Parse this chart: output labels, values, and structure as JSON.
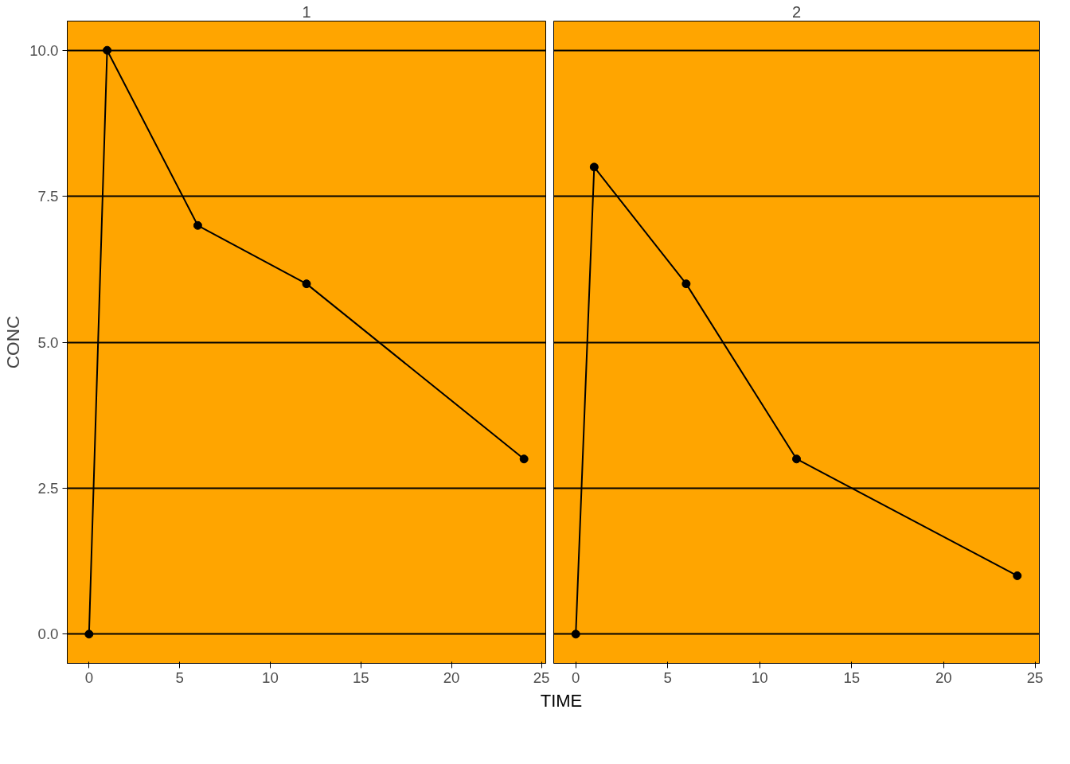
{
  "chart_data": [
    {
      "type": "line",
      "title": "1",
      "xlabel": "TIME",
      "ylabel": "CONC",
      "x": [
        0,
        1,
        6,
        12,
        24
      ],
      "series": [
        {
          "color": "#000000",
          "values": [
            0,
            10,
            7,
            6,
            3
          ]
        }
      ],
      "xlim": [
        -1.2,
        25.2
      ],
      "xticks": [
        0,
        5,
        10,
        15,
        20,
        25
      ],
      "ylim": [
        -0.5,
        10.5
      ],
      "yticks": [
        {
          "value": 0,
          "label": "0.0"
        },
        {
          "value": 2.5,
          "label": "2.5"
        },
        {
          "value": 5,
          "label": "5.0"
        },
        {
          "value": 7.5,
          "label": "7.5"
        },
        {
          "value": 10,
          "label": "10.0"
        }
      ],
      "grid": "y",
      "marker": "circle",
      "line_style": "solid"
    },
    {
      "type": "line",
      "title": "2",
      "x": [
        0,
        1,
        6,
        12,
        24
      ],
      "series": [
        {
          "color": "#000000",
          "values": [
            0,
            8,
            6,
            3,
            1
          ]
        }
      ],
      "xlim": [
        -1.2,
        25.2
      ],
      "xticks": [
        0,
        5,
        10,
        15,
        20,
        25
      ],
      "ylim": [
        -0.5,
        10.5
      ],
      "yticks": [
        {
          "value": 0,
          "label": null
        },
        {
          "value": 2.5,
          "label": null
        },
        {
          "value": 5,
          "label": null
        },
        {
          "value": 7.5,
          "label": null
        },
        {
          "value": 10,
          "label": null
        }
      ],
      "grid": "y",
      "marker": "circle",
      "line_style": "solid",
      "tick_labels": "x"
    }
  ]
}
